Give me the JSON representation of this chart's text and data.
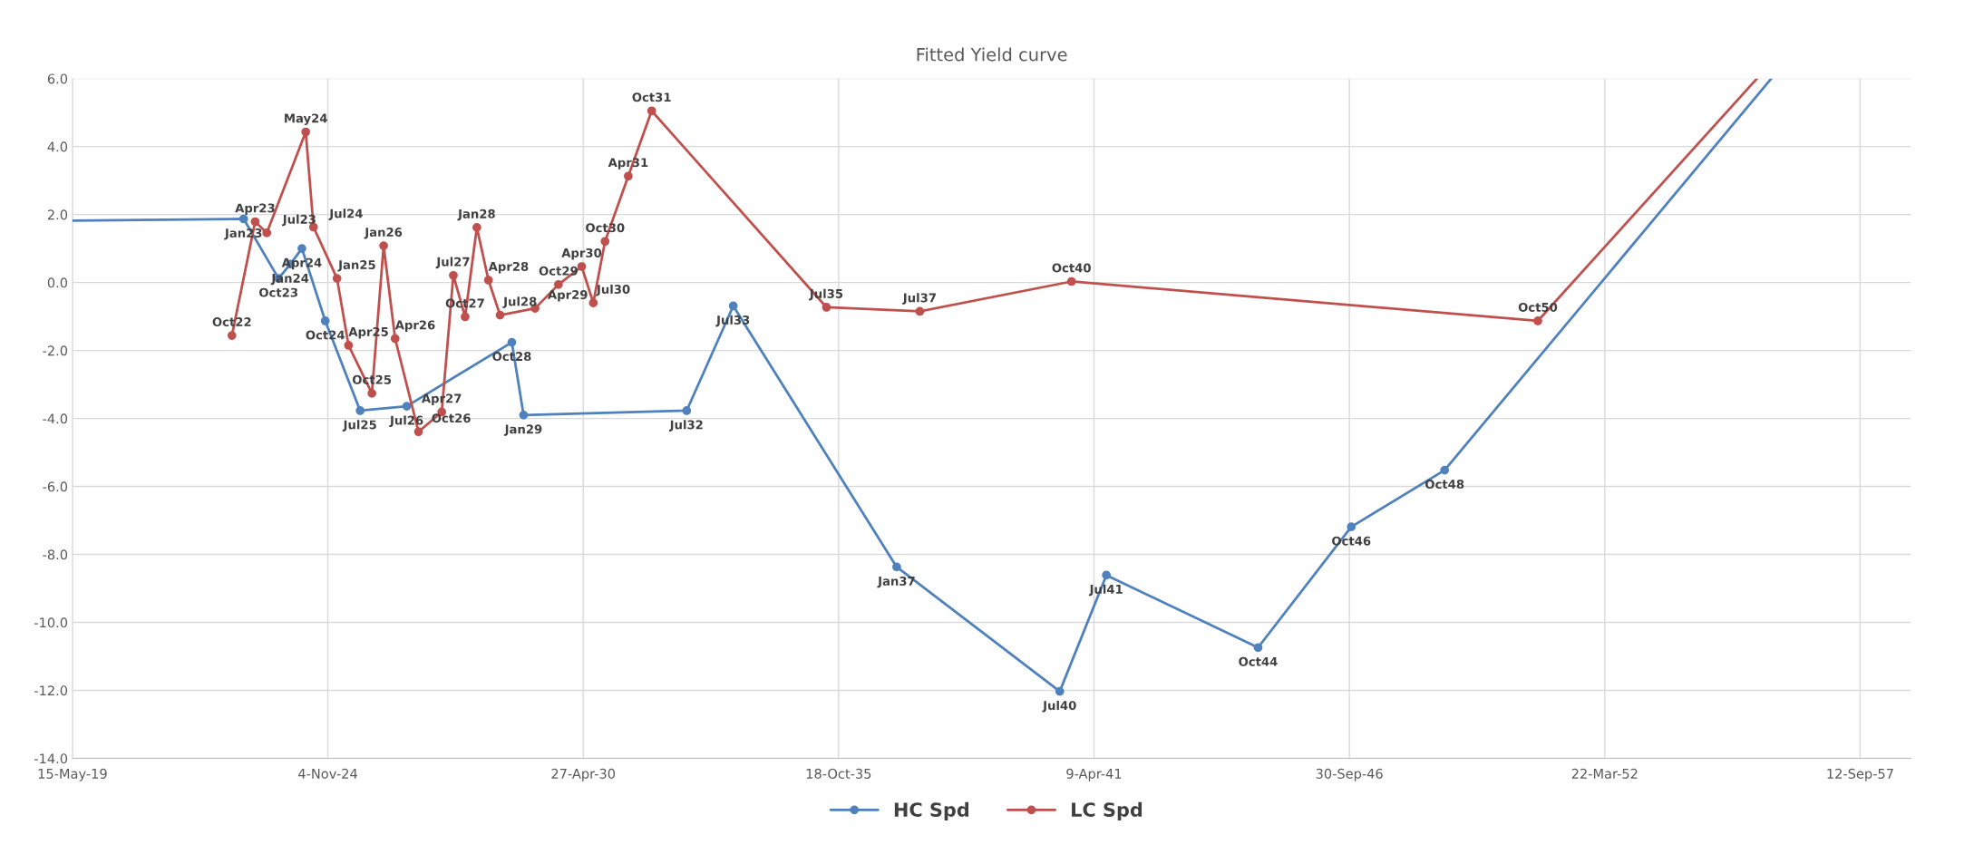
{
  "chart_data": {
    "type": "line",
    "title": "Fitted Yield curve",
    "xlim": [
      "2019-05-15",
      "2058-10-14"
    ],
    "ylim": [
      -14,
      6
    ],
    "xticks": [
      {
        "value": "2019-05-15",
        "label": "15-May-19"
      },
      {
        "value": "2024-11-04",
        "label": "4-Nov-24"
      },
      {
        "value": "2030-04-27",
        "label": "27-Apr-30"
      },
      {
        "value": "2035-10-18",
        "label": "18-Oct-35"
      },
      {
        "value": "2041-04-09",
        "label": "9-Apr-41"
      },
      {
        "value": "2046-09-30",
        "label": "30-Sep-46"
      },
      {
        "value": "2052-03-22",
        "label": "22-Mar-52"
      },
      {
        "value": "2057-09-12",
        "label": "12-Sep-57"
      }
    ],
    "yticks": [
      {
        "value": 6,
        "label": "6.0"
      },
      {
        "value": 4,
        "label": "4.0"
      },
      {
        "value": 2,
        "label": "2.0"
      },
      {
        "value": 0,
        "label": "0.0"
      },
      {
        "value": -2,
        "label": "-2.0"
      },
      {
        "value": -4,
        "label": "-4.0"
      },
      {
        "value": -6,
        "label": "-6.0"
      },
      {
        "value": -8,
        "label": "-8.0"
      },
      {
        "value": -10,
        "label": "-10.0"
      },
      {
        "value": -12,
        "label": "-12.0"
      },
      {
        "value": -14,
        "label": "-14.0"
      }
    ],
    "grid": true,
    "legend": "bottom",
    "marker": "circle",
    "line_style": "solid",
    "series": [
      {
        "name": "HC Spd",
        "color": "#4f81bd",
        "x": [
          "2023-01-15",
          "2023-10-15",
          "2024-01-15",
          "2024-04-15",
          "2024-10-15",
          "2025-07-15",
          "2026-07-15",
          "2028-10-15",
          "2029-01-15",
          "2032-07-15",
          "2033-07-15",
          "2037-01-15",
          "2040-07-15",
          "2041-07-15",
          "2044-10-15",
          "2046-10-15",
          "2048-10-15"
        ],
        "values": [
          1.87,
          0.12,
          0.54,
          1.0,
          -1.13,
          -3.77,
          -3.64,
          -1.76,
          -3.9,
          -3.77,
          -0.69,
          -8.37,
          -12.03,
          -8.61,
          -10.74,
          -7.19,
          -5.52
        ],
        "value_labels": [
          "Jan23",
          "Oct23",
          "Jan24",
          "Apr24",
          "Oct24",
          "Jul25",
          "Jul26",
          "Oct28",
          "Jan29",
          "Jul32",
          "Jul33",
          "Jan37",
          "Jul40",
          "Jul41",
          "Oct44",
          "Oct46",
          "Oct48"
        ]
      },
      {
        "name": "LC Spd",
        "color": "#c0504d",
        "x": [
          "2022-10-15",
          "2023-04-15",
          "2023-07-15",
          "2024-05-15",
          "2024-07-15",
          "2025-01-15",
          "2025-04-15",
          "2025-10-15",
          "2026-01-15",
          "2026-04-15",
          "2026-10-15",
          "2027-04-15",
          "2027-07-15",
          "2027-10-15",
          "2028-01-15",
          "2028-04-15",
          "2028-07-15",
          "2029-04-15",
          "2029-10-15",
          "2030-04-15",
          "2030-07-15",
          "2030-10-15",
          "2031-04-15",
          "2031-10-15",
          "2035-07-15",
          "2037-07-15",
          "2040-10-15",
          "2050-10-15"
        ],
        "values": [
          -1.56,
          1.79,
          1.46,
          4.43,
          1.63,
          0.12,
          -1.85,
          -3.26,
          1.08,
          -1.65,
          -4.39,
          -3.81,
          0.21,
          -1.01,
          1.62,
          0.07,
          -0.96,
          -0.76,
          -0.06,
          0.47,
          -0.6,
          1.21,
          3.13,
          5.05,
          -0.73,
          -0.85,
          0.03,
          -1.13
        ],
        "value_labels": [
          "Oct22",
          "Apr23",
          "Jul23",
          "May24",
          "Jul24",
          "Jan25",
          "Apr25",
          "Oct25",
          "Jan26",
          "Apr26",
          "Oct26",
          "Apr27",
          "Jul27",
          "Oct27",
          "Jan28",
          "Apr28",
          "Jul28",
          "Apr29",
          "Oct29",
          "Apr30",
          "Jul30",
          "Oct30",
          "Apr31",
          "Oct31",
          "Jul35",
          "Jul37",
          "Oct40",
          "Oct50"
        ]
      },
      {
        "color": "#4f81bd",
        "marker": "none",
        "x": [
          "2019-05-15",
          "2023-01-15"
        ],
        "values": [
          1.82,
          1.87
        ]
      },
      {
        "color": "#4f81bd",
        "marker": "none",
        "x": [
          "2048-10-15",
          "2055-10-17"
        ],
        "values": [
          -5.52,
          6.0
        ]
      },
      {
        "color": "#c0504d",
        "marker": "none",
        "x": [
          "2050-10-15",
          "2055-06-27"
        ],
        "values": [
          -1.13,
          6.0
        ]
      }
    ]
  }
}
